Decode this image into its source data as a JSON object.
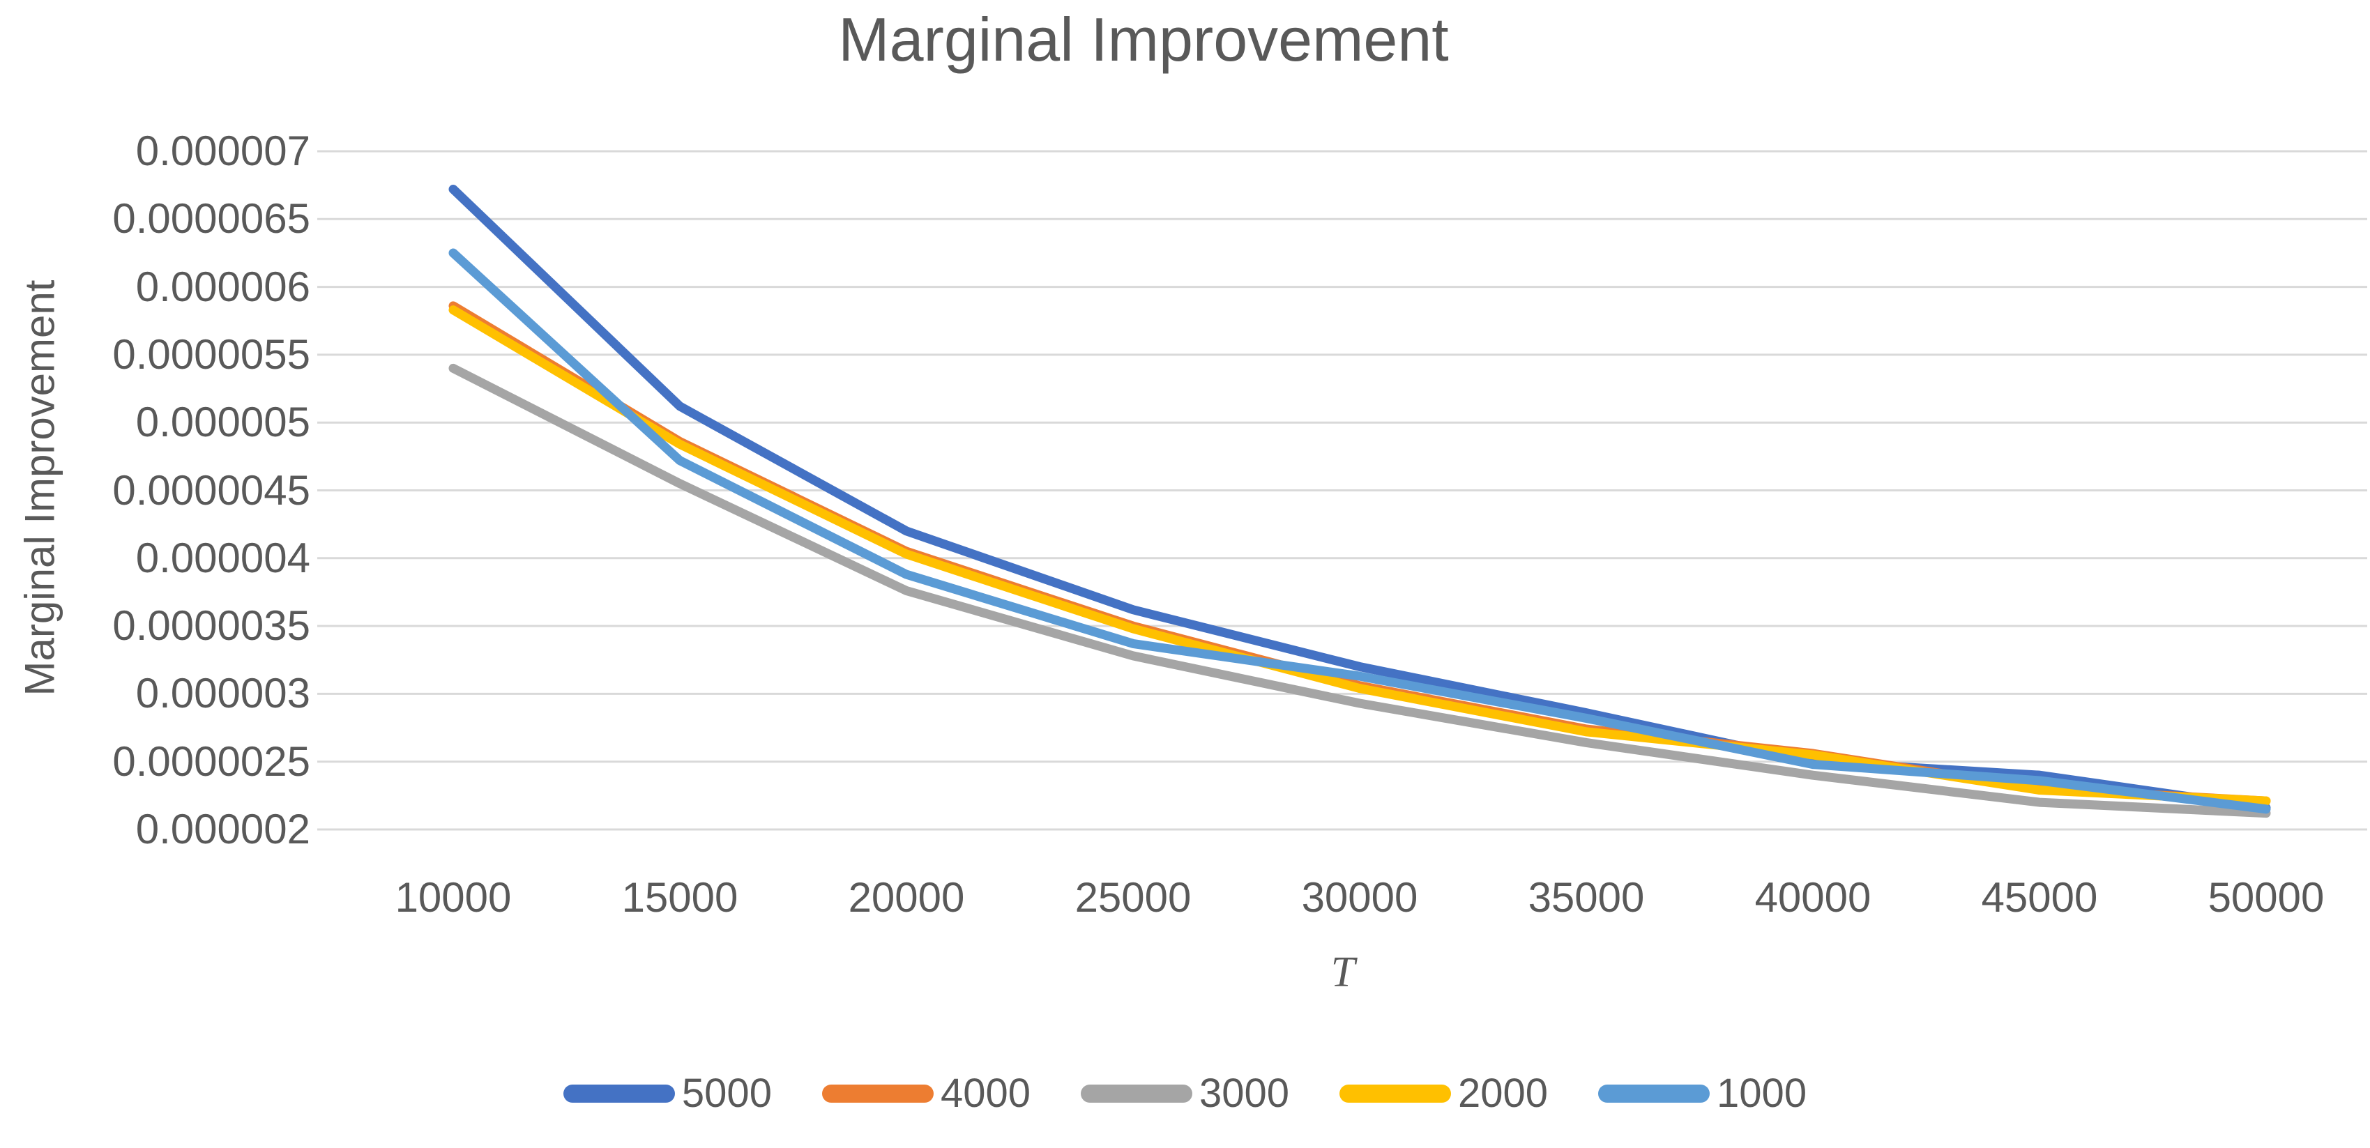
{
  "chart": {
    "title": "Marginal Improvement",
    "y_axis_title": "Marginal Improvement",
    "x_axis_title": "T"
  },
  "colors": {
    "text": "#595959",
    "gridline": "#D9D9D9",
    "background": "#FFFFFF"
  },
  "chart_data": {
    "type": "line",
    "title": "Marginal Improvement",
    "xlabel": "T",
    "ylabel": "Marginal Improvement",
    "x": [
      10000,
      15000,
      20000,
      25000,
      30000,
      35000,
      40000,
      45000,
      50000
    ],
    "x_tick_labels": [
      "10000",
      "15000",
      "20000",
      "25000",
      "30000",
      "35000",
      "40000",
      "45000",
      "50000"
    ],
    "y_tick_labels": [
      "0.000007",
      "0.0000065",
      "0.000006",
      "0.0000055",
      "0.000005",
      "0.0000045",
      "0.000004",
      "0.0000035",
      "0.000003",
      "0.0000025",
      "0.000002"
    ],
    "ylim": [
      2e-06,
      7e-06
    ],
    "ytick_step": 5e-07,
    "grid": "horizontal",
    "legend_position": "bottom",
    "series": [
      {
        "name": "5000",
        "color": "#4472C4",
        "values": [
          6.72e-06,
          5.12e-06,
          4.2e-06,
          3.62e-06,
          3.2e-06,
          2.86e-06,
          2.5e-06,
          2.4e-06,
          2.16e-06
        ]
      },
      {
        "name": "4000",
        "color": "#ED7D31",
        "values": [
          5.86e-06,
          4.86e-06,
          4.05e-06,
          3.5e-06,
          3.06e-06,
          2.74e-06,
          2.56e-06,
          2.3e-06,
          2.21e-06
        ]
      },
      {
        "name": "3000",
        "color": "#A5A5A5",
        "values": [
          5.4e-06,
          4.55e-06,
          3.76e-06,
          3.28e-06,
          2.93e-06,
          2.64e-06,
          2.4e-06,
          2.2e-06,
          2.12e-06
        ]
      },
      {
        "name": "2000",
        "color": "#FFC000",
        "values": [
          5.83e-06,
          4.84e-06,
          4.03e-06,
          3.48e-06,
          3.04e-06,
          2.72e-06,
          2.55e-06,
          2.29e-06,
          2.21e-06
        ]
      },
      {
        "name": "1000",
        "color": "#5B9BD5",
        "values": [
          6.25e-06,
          4.72e-06,
          3.88e-06,
          3.37e-06,
          3.13e-06,
          2.82e-06,
          2.48e-06,
          2.36e-06,
          2.15e-06
        ]
      }
    ]
  }
}
